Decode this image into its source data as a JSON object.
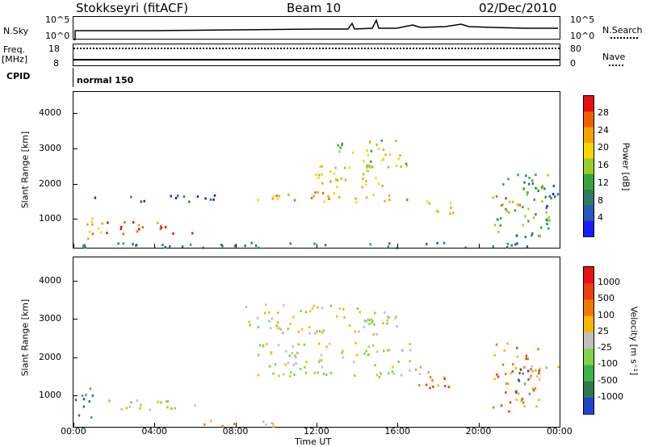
{
  "header": {
    "station": "Stokkseyri (fitACF)",
    "beam": "Beam 10",
    "date": "02/Dec/2010"
  },
  "params": {
    "nsky_label": "N.Sky",
    "nsky_ticks": [
      "10^5",
      "10^0"
    ],
    "nsearch_label": "N.Search",
    "nsearch_ticks": [
      "10^5",
      "10^0"
    ],
    "freq_label": "Freq.",
    "freq_unit": "[MHz]",
    "freq_ticks": [
      "18",
      "8"
    ],
    "nave_label": "Nave",
    "nave_ticks": [
      "80",
      "0"
    ],
    "cpid_label": "CPID",
    "cpid_value": "normal 150"
  },
  "chart_data": [
    {
      "type": "heatmap",
      "name": "power",
      "xlabel": "",
      "ylabel": "Slant Range [km]",
      "y_ticks": [
        "4000",
        "3000",
        "2000",
        "1000"
      ],
      "y_tick_values": [
        4000,
        3000,
        2000,
        1000
      ],
      "ylim": [
        180,
        4600
      ],
      "xlim_hours": [
        0,
        24
      ],
      "colorbar_label": "Power [dB]",
      "colorbar_ticks": [
        "28",
        "24",
        "20",
        "16",
        "12",
        "8",
        "4"
      ],
      "colorscale": [
        "#1a1aff",
        "#2a58b6",
        "#2f7a63",
        "#36a33a",
        "#9ccc2a",
        "#f5d800",
        "#f5a300",
        "#f06000",
        "#e81010"
      ],
      "regions": [
        {
          "t0": 0.8,
          "t1": 6.0,
          "r0": 600,
          "r1": 950,
          "level": 7
        },
        {
          "t0": 0.5,
          "t1": 1.5,
          "r0": 380,
          "r1": 1100,
          "level": 4
        },
        {
          "t0": 1.0,
          "t1": 7.5,
          "r0": 1500,
          "r1": 1700,
          "level": 1
        },
        {
          "t0": 9.0,
          "t1": 17.5,
          "r0": 1500,
          "r1": 1800,
          "level": 6
        },
        {
          "t0": 11.5,
          "t1": 15.5,
          "r0": 1900,
          "r1": 2600,
          "level": 5
        },
        {
          "t0": 13.0,
          "t1": 16.5,
          "r0": 2500,
          "r1": 3300,
          "level": 4
        },
        {
          "t0": 17.5,
          "t1": 19.0,
          "r0": 1100,
          "r1": 1500,
          "level": 5
        },
        {
          "t0": 20.8,
          "t1": 22.0,
          "r0": 1200,
          "r1": 1700,
          "level": 7
        },
        {
          "t0": 20.5,
          "t1": 23.5,
          "r0": 500,
          "r1": 2300,
          "level": 3
        },
        {
          "t0": 23.0,
          "t1": 24.0,
          "r0": 1300,
          "r1": 2000,
          "level": 1
        },
        {
          "t0": 0.0,
          "t1": 24.0,
          "r0": 200,
          "r1": 350,
          "level": 2
        }
      ]
    },
    {
      "type": "heatmap",
      "name": "velocity",
      "xlabel": "Time UT",
      "ylabel": "Slant Range [km]",
      "y_ticks": [
        "4000",
        "3000",
        "2000",
        "1000"
      ],
      "y_tick_values": [
        4000,
        3000,
        2000,
        1000
      ],
      "ylim": [
        180,
        4600
      ],
      "xlim_hours": [
        0,
        24
      ],
      "x_ticks": [
        "00:00",
        "04:00",
        "08:00",
        "12:00",
        "16:00",
        "20:00",
        "00:00"
      ],
      "x_tick_hours": [
        0,
        4,
        8,
        12,
        16,
        20,
        24
      ],
      "colorbar_label": "Velocity [m s⁻¹]",
      "colorbar_ticks": [
        "1000",
        "500",
        "100",
        "25",
        "-25",
        "-100",
        "-500",
        "-1000"
      ],
      "colorscale": [
        "#2244cc",
        "#2d7a4f",
        "#3fb04a",
        "#7fd44a",
        "#c0c0c0",
        "#f5b800",
        "#f07800",
        "#e84010",
        "#e81010"
      ],
      "regions": [
        {
          "t0": 1.0,
          "t1": 6.0,
          "r0": 600,
          "r1": 950,
          "level": 4
        },
        {
          "t0": 0.0,
          "t1": 1.0,
          "r0": 380,
          "r1": 1300,
          "level": 1
        },
        {
          "t0": 9.0,
          "t1": 17.5,
          "r0": 1500,
          "r1": 2400,
          "level": 4
        },
        {
          "t0": 8.0,
          "t1": 16.0,
          "r0": 2600,
          "r1": 3400,
          "level": 4
        },
        {
          "t0": 16.5,
          "t1": 18.5,
          "r0": 1100,
          "r1": 1600,
          "level": 6
        },
        {
          "t0": 20.5,
          "t1": 23.0,
          "r0": 600,
          "r1": 2400,
          "level": 6
        },
        {
          "t0": 21.5,
          "t1": 22.5,
          "r0": 1000,
          "r1": 1700,
          "level": 1
        },
        {
          "t0": 22.5,
          "t1": 24.0,
          "r0": 1400,
          "r1": 1800,
          "level": 4
        },
        {
          "t0": 6.0,
          "t1": 10.0,
          "r0": 200,
          "r1": 400,
          "level": 5
        }
      ]
    }
  ]
}
